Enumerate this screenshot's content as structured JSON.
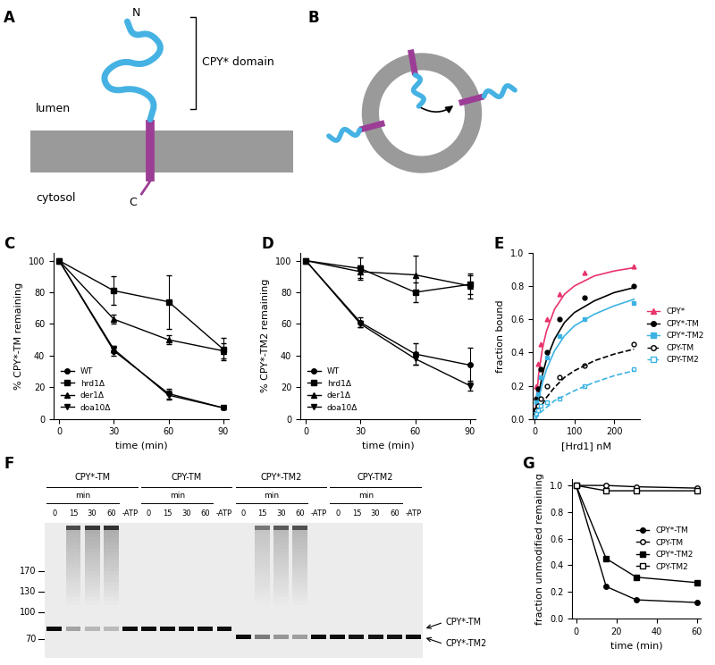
{
  "panel_labels": [
    "A",
    "B",
    "C",
    "D",
    "E",
    "F",
    "G"
  ],
  "diagram_a": {
    "n_terminus": "N",
    "domain": "CPY* domain",
    "lumen": "lumen",
    "cytosol": "cytosol",
    "c_terminus": "C"
  },
  "chart_data": [
    {
      "type": "line",
      "x": [
        0,
        30,
        60,
        90
      ],
      "x_label": "time (min)",
      "y_label": "% CPY*-TM remaining",
      "xlim": [
        -3,
        93
      ],
      "xticks": [
        0,
        30,
        60,
        90
      ],
      "ylim": [
        0,
        105
      ],
      "yticks": [
        0,
        20,
        40,
        60,
        80,
        100
      ],
      "legend": "lower left",
      "series": [
        {
          "name": "WT",
          "color": "#000000",
          "marker": "circle",
          "values": [
            100,
            43,
            16,
            7
          ],
          "errors": [
            0,
            3,
            3,
            1
          ]
        },
        {
          "name": "hrd1Δ",
          "color": "#000000",
          "marker": "square",
          "values": [
            100,
            81,
            74,
            44
          ],
          "errors": [
            0,
            9,
            17,
            7
          ]
        },
        {
          "name": "der1Δ",
          "color": "#000000",
          "marker": "triangle_up",
          "values": [
            100,
            63,
            50,
            43
          ],
          "errors": [
            0,
            3,
            3,
            5
          ]
        },
        {
          "name": "doa10Δ",
          "color": "#000000",
          "marker": "triangle_down",
          "values": [
            100,
            44,
            15,
            7
          ],
          "errors": [
            0,
            2,
            3,
            1
          ]
        }
      ]
    },
    {
      "type": "line",
      "x": [
        0,
        30,
        60,
        90
      ],
      "x_label": "time (min)",
      "y_label": "% CPY*-TM2 remaining",
      "xlim": [
        -3,
        93
      ],
      "xticks": [
        0,
        30,
        60,
        90
      ],
      "ylim": [
        0,
        105
      ],
      "yticks": [
        0,
        20,
        40,
        60,
        80,
        100
      ],
      "legend": "lower left",
      "series": [
        {
          "name": "WT",
          "color": "#000000",
          "marker": "circle",
          "values": [
            100,
            61,
            41,
            34
          ],
          "errors": [
            0,
            3,
            7,
            11
          ]
        },
        {
          "name": "hrd1Δ",
          "color": "#000000",
          "marker": "square",
          "values": [
            100,
            95,
            80,
            85
          ],
          "errors": [
            0,
            7,
            6,
            6
          ]
        },
        {
          "name": "der1Δ",
          "color": "#000000",
          "marker": "triangle_up",
          "values": [
            100,
            93,
            91,
            84
          ],
          "errors": [
            0,
            4,
            12,
            8
          ]
        },
        {
          "name": "doa10Δ",
          "color": "#000000",
          "marker": "triangle_down",
          "values": [
            100,
            60,
            38,
            21
          ],
          "errors": [
            0,
            2,
            4,
            3
          ]
        }
      ]
    },
    {
      "type": "scatter",
      "x": [
        0,
        4,
        8,
        16,
        31,
        62,
        125,
        250
      ],
      "fit_x": [
        0,
        10,
        20,
        30,
        50,
        75,
        100,
        150,
        200,
        250
      ],
      "x_label": "[Hrd1] nM",
      "y_label": "fraction bound",
      "xlim": [
        -5,
        265
      ],
      "xticks": [
        0,
        100,
        200
      ],
      "ylim": [
        0,
        1.0
      ],
      "yticks": [
        {
          "value": 0,
          "label": "0.0"
        },
        0.2,
        0.4,
        0.6,
        0.8,
        {
          "value": 1,
          "label": "1.0"
        }
      ],
      "legend": "right",
      "series": [
        {
          "name": "CPY*",
          "color": "#e8336b",
          "marker": "triangle_up",
          "line_style": "solid",
          "values": [
            0.05,
            0.2,
            0.33,
            0.45,
            0.6,
            0.75,
            0.88,
            0.92
          ],
          "fit": [
            0,
            0.27,
            0.43,
            0.53,
            0.66,
            0.75,
            0.8,
            0.86,
            0.89,
            0.91
          ]
        },
        {
          "name": "CPY*-TM",
          "color": "#000000",
          "marker": "circle",
          "line_style": "solid",
          "values": [
            0.05,
            0.12,
            0.18,
            0.3,
            0.4,
            0.6,
            0.73,
            0.8
          ],
          "fit": [
            0,
            0.15,
            0.27,
            0.36,
            0.48,
            0.58,
            0.64,
            0.71,
            0.76,
            0.79
          ]
        },
        {
          "name": "CPY*-TM2",
          "color": "#3db3e3",
          "marker": "square",
          "line_style": "solid",
          "values": [
            0.03,
            0.1,
            0.15,
            0.25,
            0.37,
            0.5,
            0.6,
            0.7
          ],
          "fit": [
            0,
            0.12,
            0.22,
            0.3,
            0.41,
            0.5,
            0.56,
            0.63,
            0.68,
            0.72
          ]
        },
        {
          "name": "CPY-TM",
          "color": "#000000",
          "marker": "open_circle",
          "line_style": "dashed",
          "values": [
            0.02,
            0.05,
            0.08,
            0.12,
            0.2,
            0.25,
            0.32,
            0.45
          ],
          "fit": [
            0,
            0.05,
            0.09,
            0.13,
            0.19,
            0.25,
            0.29,
            0.35,
            0.39,
            0.42
          ]
        },
        {
          "name": "CPY-TM2",
          "color": "#3db3e3",
          "marker": "open_square",
          "line_style": "dashed",
          "values": [
            0.01,
            0.03,
            0.05,
            0.08,
            0.1,
            0.12,
            0.2,
            0.3
          ],
          "fit": [
            0,
            0.03,
            0.05,
            0.07,
            0.11,
            0.14,
            0.17,
            0.22,
            0.26,
            0.29
          ]
        }
      ]
    },
    {
      "type": "line",
      "x": [
        0,
        15,
        30,
        60
      ],
      "x_label": "time (min)",
      "y_label": "fraction unmodified remaining",
      "xlim": [
        -2,
        62
      ],
      "xticks": [
        0,
        20,
        40,
        60
      ],
      "ylim": [
        0,
        1.05
      ],
      "yticks": [
        {
          "value": 0,
          "label": "0.0"
        },
        0.2,
        0.4,
        0.6,
        0.8,
        {
          "value": 1,
          "label": "1.0"
        }
      ],
      "legend": "center right",
      "series": [
        {
          "name": "CPY*-TM",
          "color": "#000000",
          "marker": "circle",
          "values": [
            1.0,
            0.24,
            0.14,
            0.12
          ]
        },
        {
          "name": "CPY-TM",
          "color": "#000000",
          "marker": "open_circle",
          "values": [
            1.0,
            1.0,
            0.99,
            0.98
          ]
        },
        {
          "name": "CPY*-TM2",
          "color": "#000000",
          "marker": "square",
          "values": [
            1.0,
            0.45,
            0.31,
            0.27
          ]
        },
        {
          "name": "CPY-TM2",
          "color": "#000000",
          "marker": "open_square",
          "values": [
            1.0,
            0.96,
            0.96,
            0.96
          ]
        }
      ]
    }
  ],
  "gel": {
    "groups": [
      "CPY*-TM",
      "CPY-TM",
      "CPY*-TM2",
      "CPY-TM2"
    ],
    "time_label": "min",
    "lanes": [
      "0",
      "15",
      "30",
      "60",
      "-ATP"
    ],
    "mw_markers": [
      170,
      130,
      100,
      70
    ],
    "band_labels": [
      "CPY*-TM",
      "CPY*-TM2"
    ]
  }
}
